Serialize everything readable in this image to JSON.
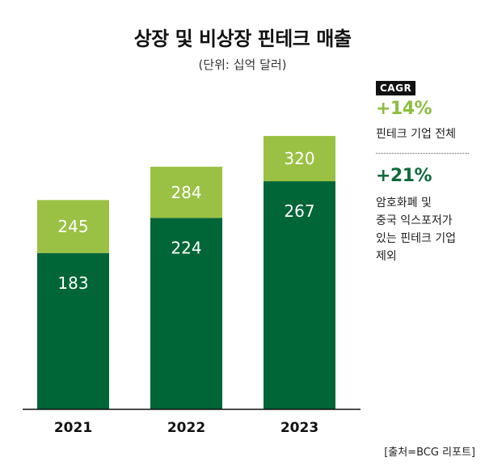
{
  "title": "상장 및 비상장 핀테크 매출",
  "subtitle": "(단위: 십억 달러)",
  "chart_data": {
    "type": "bar",
    "stacked": true,
    "categories": [
      "2021",
      "2022",
      "2023"
    ],
    "series": [
      {
        "values": [
          183,
          224,
          267
        ],
        "color": "#006537"
      },
      {
        "values": [
          62,
          60,
          53
        ],
        "color": "#9ac144"
      }
    ],
    "data_labels": {
      "lower": [
        "183",
        "224",
        "267"
      ],
      "upper": [
        "245",
        "284",
        "320"
      ]
    },
    "ylim": [
      0,
      375
    ],
    "grid": false
  },
  "cagr": {
    "badge": "CAGR",
    "items": [
      {
        "value": "+14%",
        "description": "핀테크 기업 전체",
        "color": "#8cbe3f"
      },
      {
        "value": "+21%",
        "description": "암호화폐 및\n중국 익스포저가\n있는 핀테크 기업\n제외",
        "color": "#0d6b3a"
      }
    ]
  },
  "source": "[출처=BCG 리포트]"
}
